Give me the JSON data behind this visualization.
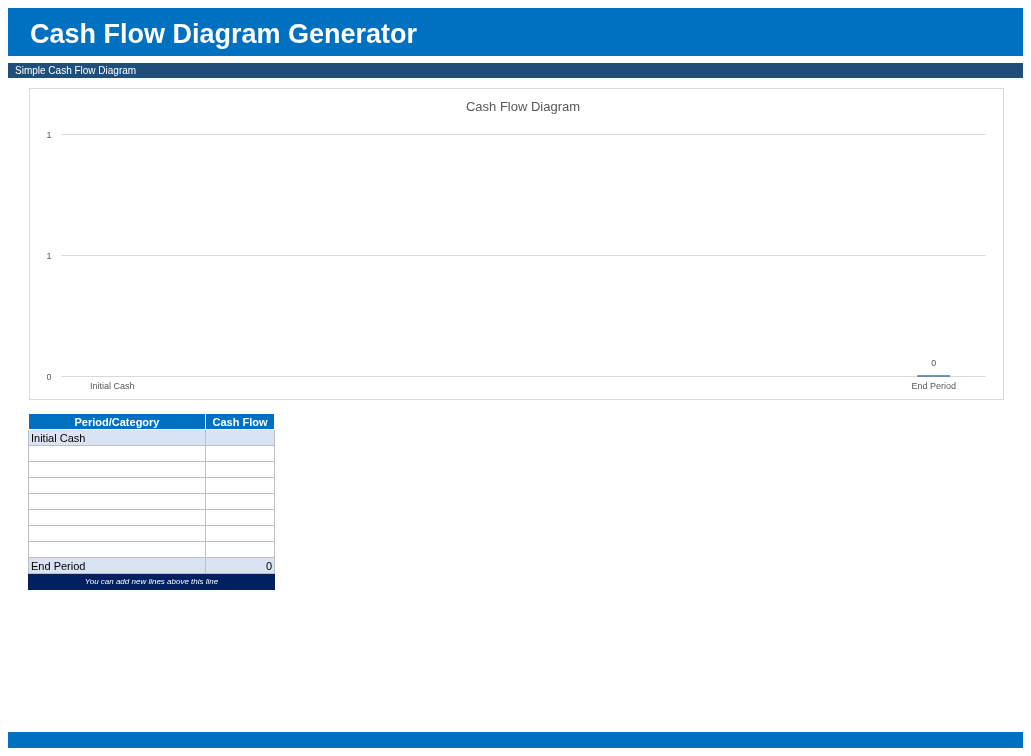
{
  "chart_data": {
    "type": "bar",
    "title": "Cash Flow Diagram",
    "categories": [
      "Initial Cash",
      null,
      null,
      null,
      null,
      null,
      null,
      null,
      "End Period"
    ],
    "values": [
      null,
      null,
      null,
      null,
      null,
      null,
      null,
      null,
      0
    ],
    "value_labels": [
      null,
      null,
      null,
      null,
      null,
      null,
      null,
      null,
      "0"
    ],
    "color": "#44729e",
    "ylim": [
      0,
      1
    ],
    "yticks": [
      0,
      {
        "value": 0.5,
        "label": "1"
      },
      1
    ],
    "grid": "y",
    "annotations": [
      "Cash Flow Diagram Generator",
      "Simple Cash Flow Diagram",
      "Period/Category",
      "Cash Flow",
      "You can add new lines above this line"
    ]
  }
}
